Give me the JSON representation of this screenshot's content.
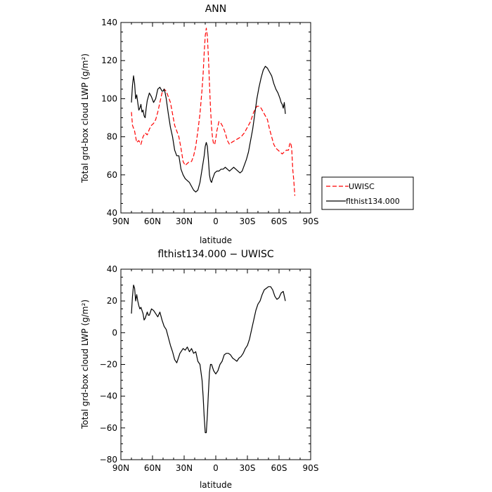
{
  "chart_data": [
    {
      "type": "line",
      "title": "ANN",
      "xlabel": "latitude",
      "ylabel": "Total grd-box cloud LWP (g/m²)",
      "x_reversed": true,
      "xlim": [
        90,
        -90
      ],
      "ylim": [
        40,
        140
      ],
      "x_ticks": [
        {
          "value": 90,
          "label": "90N"
        },
        {
          "value": 60,
          "label": "60N"
        },
        {
          "value": 30,
          "label": "30N"
        },
        {
          "value": 0,
          "label": "0"
        },
        {
          "value": -30,
          "label": "30S"
        },
        {
          "value": -60,
          "label": "60S"
        },
        {
          "value": -90,
          "label": "90S"
        }
      ],
      "y_ticks": [
        40,
        60,
        80,
        100,
        120,
        140
      ],
      "legend_position": "right",
      "series": [
        {
          "name": "UWISC",
          "color": "#ff0000",
          "style": "dashed",
          "x": [
            80,
            79,
            77,
            75,
            73,
            71,
            69,
            67,
            65,
            63,
            61,
            59,
            57,
            55,
            53,
            51,
            49,
            47,
            45,
            43,
            41,
            39,
            37,
            35,
            33,
            31,
            29,
            27,
            25,
            23,
            21,
            19,
            17,
            15,
            13,
            12,
            11,
            10,
            9,
            8,
            7,
            6,
            5,
            4,
            3,
            2,
            1,
            0,
            -1,
            -3,
            -5,
            -7,
            -9,
            -11,
            -13,
            -15,
            -18,
            -21,
            -24,
            -27,
            -30,
            -33,
            -36,
            -39,
            -41,
            -43,
            -45,
            -47,
            -49,
            -51,
            -53,
            -55,
            -57,
            -59,
            -61,
            -63,
            -65,
            -67,
            -69,
            -70,
            -71,
            -72,
            -73,
            -74,
            -75
          ],
          "y": [
            93,
            86,
            83,
            77,
            78,
            76,
            80,
            82,
            81,
            84,
            86,
            87,
            89,
            93,
            98,
            103,
            105,
            104,
            101,
            98,
            92,
            86,
            83,
            80,
            74,
            67,
            65,
            66,
            67,
            67,
            70,
            75,
            83,
            92,
            105,
            113,
            124,
            133,
            137,
            133,
            122,
            108,
            95,
            85,
            79,
            76,
            76,
            79,
            83,
            88,
            87,
            85,
            82,
            78,
            76,
            77,
            78,
            79,
            80,
            82,
            85,
            88,
            93,
            96,
            96,
            95,
            93,
            91,
            89,
            84,
            80,
            76,
            74,
            73,
            72,
            71,
            72,
            73,
            73,
            76,
            77,
            74,
            63,
            57,
            49
          ]
        },
        {
          "name": "flthist134.000",
          "color": "#000000",
          "style": "solid",
          "x": [
            80,
            79,
            78,
            77,
            76,
            75,
            74,
            73,
            72,
            71,
            70,
            69,
            68,
            67,
            66,
            65,
            63,
            61,
            59,
            57,
            55,
            53,
            51,
            50,
            49,
            48,
            47,
            45,
            43,
            41,
            39,
            37,
            35,
            33,
            31,
            29,
            27,
            25,
            23,
            21,
            19,
            17,
            15,
            13,
            11,
            10,
            9,
            8,
            7,
            6,
            5,
            4,
            3,
            1,
            -1,
            -3,
            -5,
            -7,
            -9,
            -11,
            -13,
            -15,
            -17,
            -19,
            -21,
            -23,
            -25,
            -27,
            -29,
            -31,
            -33,
            -35,
            -37,
            -39,
            -41,
            -43,
            -45,
            -47,
            -49,
            -51,
            -53,
            -55,
            -57,
            -59,
            -61,
            -62,
            -63,
            -64,
            -65,
            -66
          ],
          "y": [
            98,
            107,
            112,
            108,
            100,
            102,
            98,
            94,
            95,
            97,
            93,
            94,
            91,
            90,
            95,
            99,
            103,
            101,
            98,
            100,
            105,
            106,
            104,
            104,
            105,
            103,
            100,
            92,
            85,
            80,
            73,
            70,
            70,
            63,
            60,
            58,
            57,
            56,
            54,
            52,
            51,
            52,
            56,
            63,
            70,
            75,
            77,
            75,
            68,
            60,
            57,
            56,
            58,
            61,
            62,
            62,
            63,
            63,
            64,
            63,
            62,
            63,
            64,
            63,
            62,
            61,
            62,
            65,
            68,
            72,
            78,
            84,
            92,
            100,
            106,
            111,
            115,
            117,
            116,
            114,
            112,
            108,
            105,
            103,
            100,
            98,
            97,
            95,
            98,
            92
          ]
        }
      ]
    },
    {
      "type": "line",
      "title": "flthist134.000 − UWISC",
      "xlabel": "latitude",
      "ylabel": "Total grd-box cloud LWP (g/m²)",
      "x_reversed": true,
      "xlim": [
        90,
        -90
      ],
      "ylim": [
        -80,
        40
      ],
      "x_ticks": [
        {
          "value": 90,
          "label": "90N"
        },
        {
          "value": 60,
          "label": "60N"
        },
        {
          "value": 30,
          "label": "30N"
        },
        {
          "value": 0,
          "label": "0"
        },
        {
          "value": -30,
          "label": "30S"
        },
        {
          "value": -60,
          "label": "60S"
        },
        {
          "value": -90,
          "label": "90S"
        }
      ],
      "y_ticks": [
        -80,
        -60,
        -40,
        -20,
        0,
        20,
        40
      ],
      "series": [
        {
          "color": "#000000",
          "style": "solid",
          "x": [
            80,
            79,
            78,
            77,
            76,
            75,
            74,
            73,
            72,
            71,
            70,
            69,
            68,
            67,
            66,
            65,
            64,
            63,
            62,
            61,
            59,
            57,
            55,
            53,
            51,
            49,
            47,
            45,
            43,
            41,
            39,
            37,
            36,
            35,
            34,
            33,
            31,
            29,
            27,
            25,
            23,
            21,
            19,
            17,
            15,
            13,
            12,
            11,
            10,
            9,
            8,
            7,
            6,
            5,
            4,
            3,
            2,
            1,
            0,
            -2,
            -4,
            -6,
            -8,
            -10,
            -12,
            -14,
            -16,
            -18,
            -20,
            -22,
            -24,
            -26,
            -28,
            -30,
            -32,
            -34,
            -36,
            -38,
            -40,
            -42,
            -44,
            -46,
            -48,
            -50,
            -52,
            -54,
            -56,
            -58,
            -60,
            -62,
            -64,
            -66
          ],
          "y": [
            12,
            23,
            30,
            28,
            20,
            24,
            20,
            17,
            15,
            16,
            14,
            12,
            8,
            9,
            11,
            13,
            11,
            11,
            13,
            15,
            14,
            12,
            10,
            13,
            8,
            4,
            2,
            -3,
            -8,
            -12,
            -17,
            -19,
            -17,
            -15,
            -13,
            -12,
            -10,
            -11,
            -9,
            -12,
            -10,
            -13,
            -12,
            -18,
            -20,
            -30,
            -40,
            -53,
            -63,
            -63,
            -52,
            -38,
            -25,
            -20,
            -20,
            -22,
            -24,
            -25,
            -26,
            -24,
            -20,
            -18,
            -14,
            -13,
            -13,
            -14,
            -16,
            -17,
            -18,
            -16,
            -15,
            -13,
            -10,
            -8,
            -4,
            2,
            8,
            14,
            18,
            20,
            24,
            27,
            28,
            29,
            29,
            27,
            23,
            21,
            22,
            25,
            26,
            20
          ]
        }
      ]
    }
  ]
}
